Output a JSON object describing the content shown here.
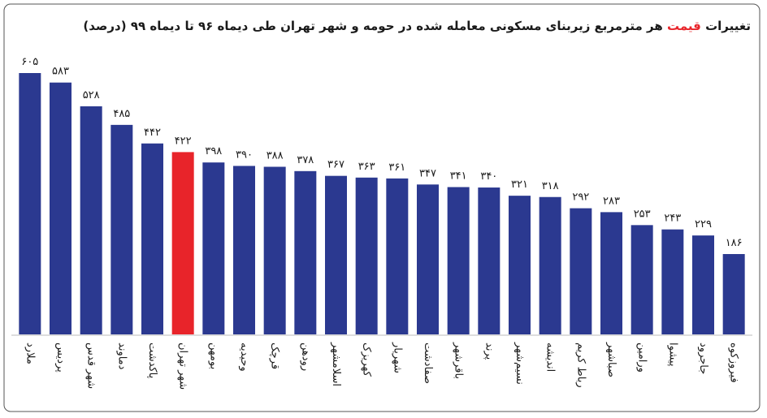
{
  "chart_data": {
    "type": "bar",
    "title": [
      "تغییرات ",
      "قیمت",
      " هر مترمربع زیربنای مسکونی معامله شده در حومه و شهر تهران طی دیماه ۹۶ تا دیماه ۹۹ (درصد)"
    ],
    "title_colors": [
      "#1a1a1a",
      "#e8242a",
      "#1a1a1a"
    ],
    "categories": [
      "ملارد",
      "پردیس",
      "شهر قدس",
      "دماوند",
      "پاکدشت",
      "شهر تهران",
      "بومهن",
      "وحیدیه",
      "قرچک",
      "رودهن",
      "اسلامشهر",
      "کهریزک",
      "شهریار",
      "صفادشت",
      "باقرشهر",
      "پرند",
      "نسیم‌شهر",
      "اندیشه",
      "رباط کریم",
      "صباشهر",
      "ورامین",
      "پیشوا",
      "جاجرود",
      "فیروزکوه"
    ],
    "values": [
      605,
      583,
      528,
      485,
      442,
      422,
      398,
      390,
      388,
      378,
      367,
      363,
      361,
      347,
      341,
      340,
      321,
      318,
      292,
      283,
      253,
      243,
      229,
      186
    ],
    "value_labels": [
      "۶۰۵",
      "۵۸۳",
      "۵۲۸",
      "۴۸۵",
      "۴۴۲",
      "۴۲۲",
      "۳۹۸",
      "۳۹۰",
      "۳۸۸",
      "۳۷۸",
      "۳۶۷",
      "۳۶۳",
      "۳۶۱",
      "۳۴۷",
      "۳۴۱",
      "۳۴۰",
      "۳۲۱",
      "۳۱۸",
      "۲۹۲",
      "۲۸۳",
      "۲۵۳",
      "۲۴۳",
      "۲۲۹",
      "۱۸۶"
    ],
    "colors": [
      "#2b3990",
      "#2b3990",
      "#2b3990",
      "#2b3990",
      "#2b3990",
      "#e8242a",
      "#2b3990",
      "#2b3990",
      "#2b3990",
      "#2b3990",
      "#2b3990",
      "#2b3990",
      "#2b3990",
      "#2b3990",
      "#2b3990",
      "#2b3990",
      "#2b3990",
      "#2b3990",
      "#2b3990",
      "#2b3990",
      "#2b3990",
      "#2b3990",
      "#2b3990",
      "#2b3990"
    ],
    "label_colors": [
      "#1a1a1a",
      "#1a1a1a",
      "#1a1a1a",
      "#1a1a1a",
      "#1a1a1a",
      "#e8242a",
      "#1a1a1a",
      "#1a1a1a",
      "#1a1a1a",
      "#1a1a1a",
      "#1a1a1a",
      "#1a1a1a",
      "#1a1a1a",
      "#1a1a1a",
      "#1a1a1a",
      "#1a1a1a",
      "#1a1a1a",
      "#1a1a1a",
      "#1a1a1a",
      "#1a1a1a",
      "#1a1a1a",
      "#1a1a1a",
      "#1a1a1a",
      "#1a1a1a"
    ]
  }
}
